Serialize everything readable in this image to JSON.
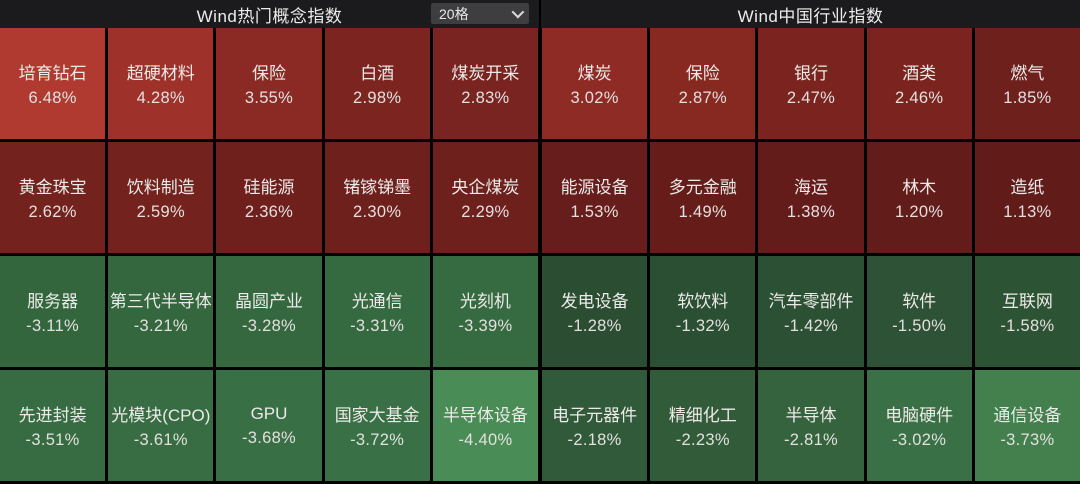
{
  "panels": [
    {
      "title": "Wind热门概念指数",
      "grid_size_selector": {
        "value": "20格",
        "icon": "chevron-down"
      },
      "tiles": [
        {
          "name": "培育钻石",
          "change": "6.48%",
          "color": "#b13a30"
        },
        {
          "name": "超硬材料",
          "change": "4.28%",
          "color": "#9e322a"
        },
        {
          "name": "保险",
          "change": "3.55%",
          "color": "#8b2a24"
        },
        {
          "name": "白酒",
          "change": "2.98%",
          "color": "#7c2520"
        },
        {
          "name": "煤炭开采",
          "change": "2.83%",
          "color": "#792420"
        },
        {
          "name": "黄金珠宝",
          "change": "2.62%",
          "color": "#74221e"
        },
        {
          "name": "饮料制造",
          "change": "2.59%",
          "color": "#73221e"
        },
        {
          "name": "硅能源",
          "change": "2.36%",
          "color": "#6f201d"
        },
        {
          "name": "锗镓锑墨",
          "change": "2.30%",
          "color": "#6e201d"
        },
        {
          "name": "央企煤炭",
          "change": "2.29%",
          "color": "#6e201d"
        },
        {
          "name": "服务器",
          "change": "-3.11%",
          "color": "#33663d"
        },
        {
          "name": "第三代半导体",
          "change": "-3.21%",
          "color": "#34673e"
        },
        {
          "name": "晶圆产业",
          "change": "-3.28%",
          "color": "#35683f"
        },
        {
          "name": "光通信",
          "change": "-3.31%",
          "color": "#356940"
        },
        {
          "name": "光刻机",
          "change": "-3.39%",
          "color": "#366a41"
        },
        {
          "name": "先进封装",
          "change": "-3.51%",
          "color": "#376c42"
        },
        {
          "name": "光模块(CPO)",
          "change": "-3.61%",
          "color": "#386d43"
        },
        {
          "name": "GPU",
          "change": "-3.68%",
          "color": "#396f44"
        },
        {
          "name": "国家大基金",
          "change": "-3.72%",
          "color": "#397045"
        },
        {
          "name": "半导体设备",
          "change": "-4.40%",
          "color": "#4a8c55"
        }
      ]
    },
    {
      "title": "Wind中国行业指数",
      "tiles": [
        {
          "name": "煤炭",
          "change": "3.02%",
          "color": "#8e2b24"
        },
        {
          "name": "保险",
          "change": "2.87%",
          "color": "#872921"
        },
        {
          "name": "银行",
          "change": "2.47%",
          "color": "#7b241f"
        },
        {
          "name": "酒类",
          "change": "2.46%",
          "color": "#7b241f"
        },
        {
          "name": "燃气",
          "change": "1.85%",
          "color": "#6e201d"
        },
        {
          "name": "能源设备",
          "change": "1.53%",
          "color": "#671d1b"
        },
        {
          "name": "多元金融",
          "change": "1.49%",
          "color": "#661d1a"
        },
        {
          "name": "海运",
          "change": "1.38%",
          "color": "#641c1a"
        },
        {
          "name": "林木",
          "change": "1.20%",
          "color": "#621c19"
        },
        {
          "name": "造纸",
          "change": "1.13%",
          "color": "#611b19"
        },
        {
          "name": "发电设备",
          "change": "-1.28%",
          "color": "#2b4e33"
        },
        {
          "name": "软饮料",
          "change": "-1.32%",
          "color": "#2b4f33"
        },
        {
          "name": "汽车零部件",
          "change": "-1.42%",
          "color": "#2c5034"
        },
        {
          "name": "软件",
          "change": "-1.50%",
          "color": "#2d5235"
        },
        {
          "name": "互联网",
          "change": "-1.58%",
          "color": "#2d5335"
        },
        {
          "name": "电子元器件",
          "change": "-2.18%",
          "color": "#305a39"
        },
        {
          "name": "精细化工",
          "change": "-2.23%",
          "color": "#315b39"
        },
        {
          "name": "半导体",
          "change": "-2.81%",
          "color": "#34633d"
        },
        {
          "name": "电脑硬件",
          "change": "-3.02%",
          "color": "#3a7046"
        },
        {
          "name": "通信设备",
          "change": "-3.73%",
          "color": "#447f4e"
        }
      ]
    }
  ],
  "colors": {
    "background": "#000000",
    "header_bar": "#1b1b1d",
    "dropdown_bg": "#3e3e41",
    "text": "#ececec",
    "positive_max": "#b13a30",
    "positive_min": "#611b19",
    "negative_min": "#2b4e33",
    "negative_max": "#4a8c55"
  }
}
